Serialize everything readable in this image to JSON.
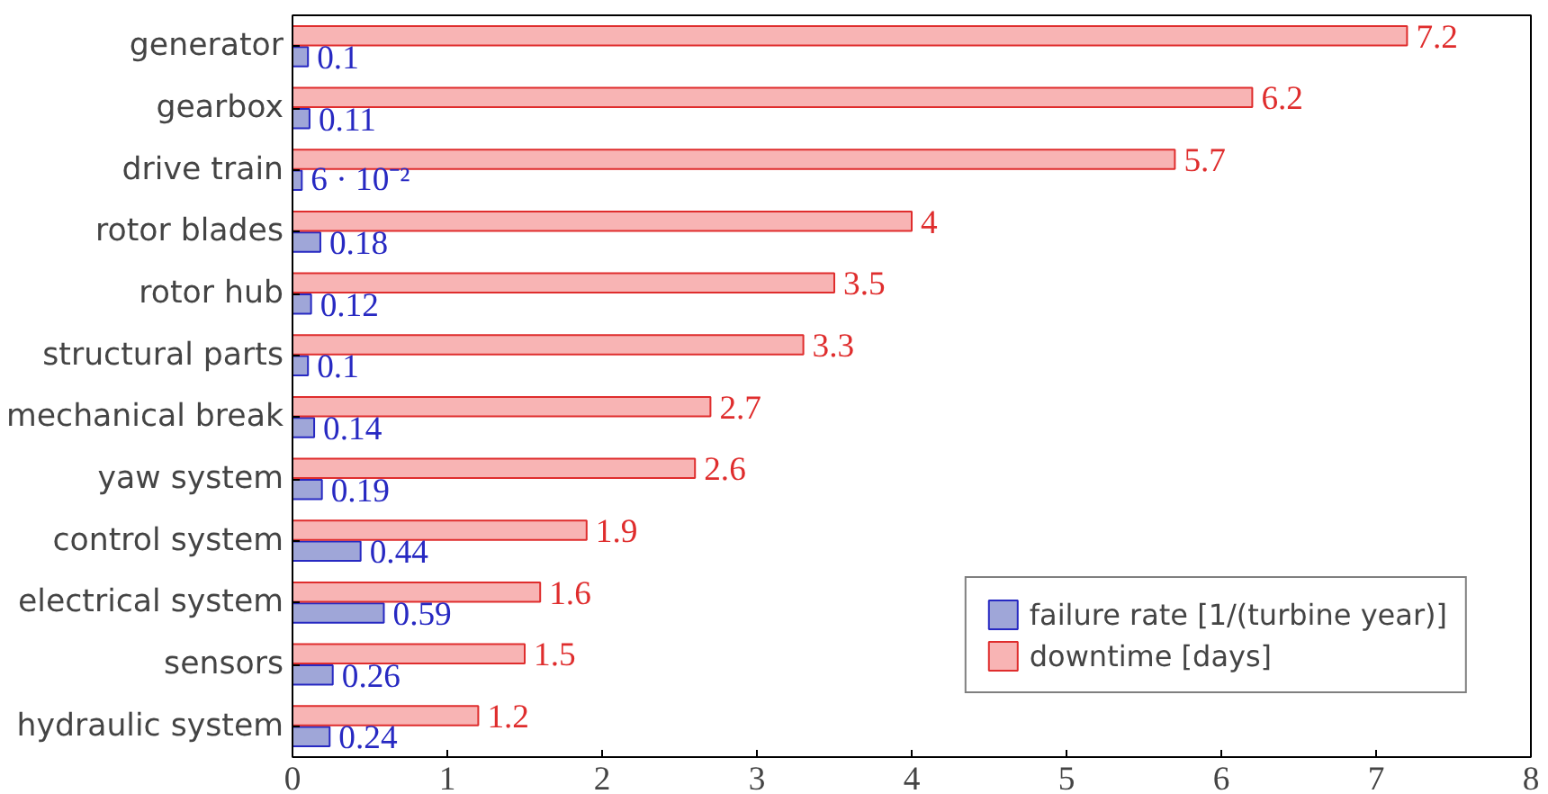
{
  "chart_data": {
    "type": "bar",
    "orientation": "horizontal",
    "categories": [
      "generator",
      "gearbox",
      "drive train",
      "rotor blades",
      "rotor hub",
      "structural parts",
      "mechanical break",
      "yaw system",
      "control system",
      "electrical system",
      "sensors",
      "hydraulic system"
    ],
    "series": [
      {
        "name": "failure rate [1/(turbine year)]",
        "color": "#9fa6d8",
        "values": [
          0.1,
          0.11,
          0.06,
          0.18,
          0.12,
          0.1,
          0.14,
          0.19,
          0.44,
          0.59,
          0.26,
          0.24
        ],
        "value_labels": [
          "0.1",
          "0.11",
          "6 · 10⁻²",
          "0.18",
          "0.12",
          "0.1",
          "0.14",
          "0.19",
          "0.44",
          "0.59",
          "0.26",
          "0.24"
        ]
      },
      {
        "name": "downtime [days]",
        "color": "#f8b4b4",
        "values": [
          7.2,
          6.2,
          5.7,
          4,
          3.5,
          3.3,
          2.7,
          2.6,
          1.9,
          1.6,
          1.5,
          1.2
        ],
        "value_labels": [
          "7.2",
          "6.2",
          "5.7",
          "4",
          "3.5",
          "3.3",
          "2.7",
          "2.6",
          "1.9",
          "1.6",
          "1.5",
          "1.2"
        ]
      }
    ],
    "xlim": [
      0,
      8
    ],
    "xticks": [
      0,
      1,
      2,
      3,
      4,
      5,
      6,
      7,
      8
    ],
    "grid": false,
    "legend": "bottom right"
  }
}
